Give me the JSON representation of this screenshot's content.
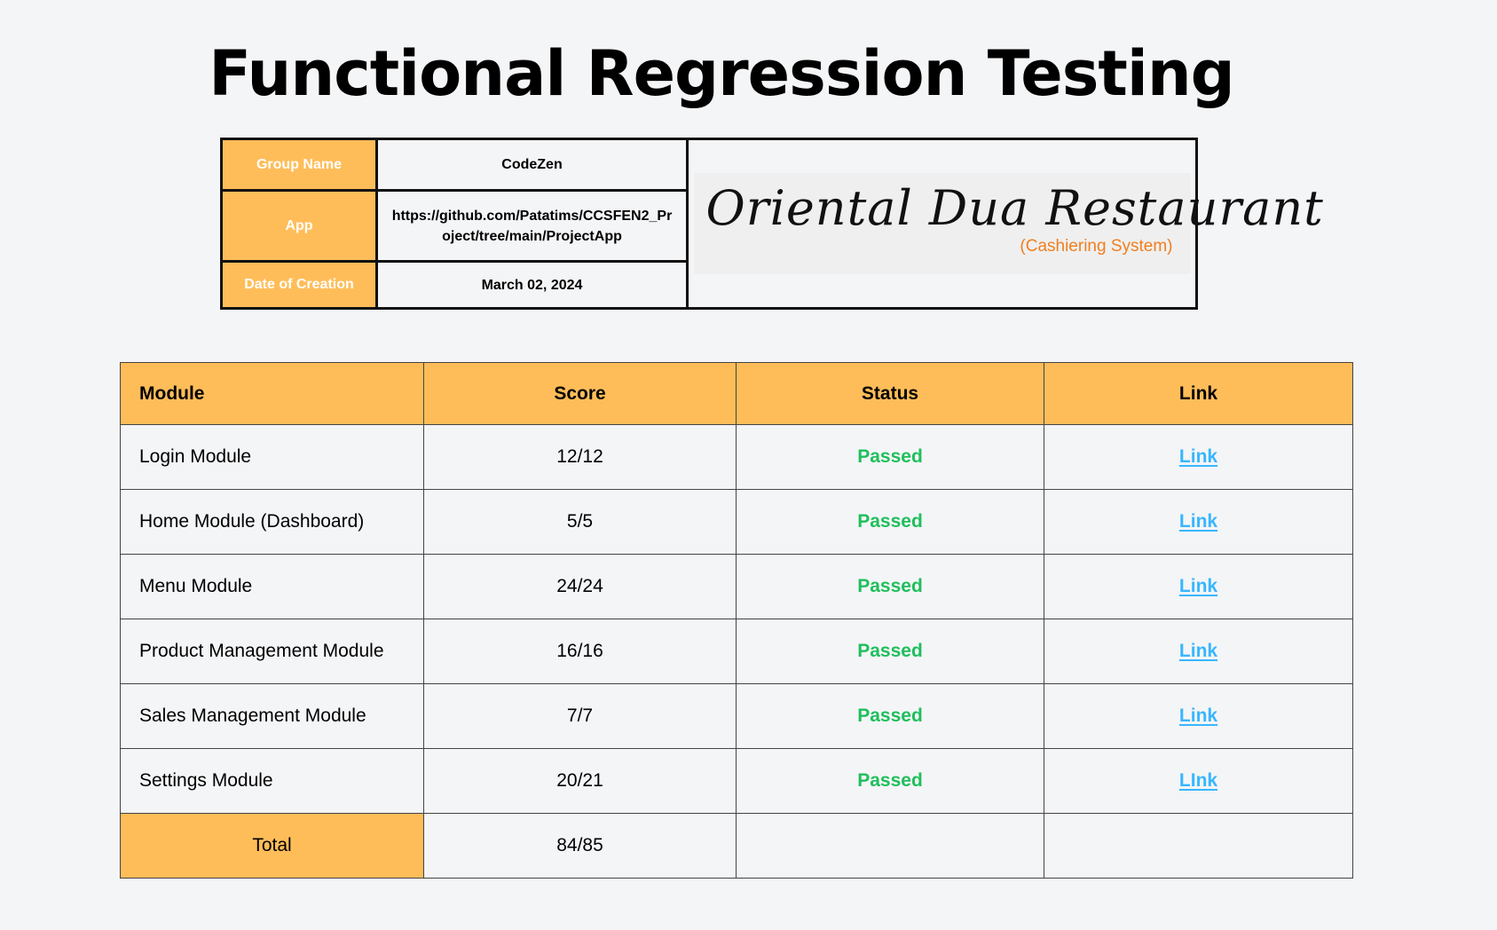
{
  "title": "Functional Regression Testing",
  "info": {
    "group_label": "Group Name",
    "group_value": "CodeZen",
    "app_label": "App",
    "app_value": "https://github.com/Patatims/CCSFEN2_Project/tree/main/ProjectApp",
    "date_label": "Date of Creation",
    "date_value": "March 02, 2024"
  },
  "logo": {
    "name": "Oriental Dua Restaurant",
    "subtitle": "(Cashiering System)",
    "subtitle_color": "#f07f1e"
  },
  "table": {
    "headers": {
      "module": "Module",
      "score": "Score",
      "status": "Status",
      "link": "Link"
    },
    "rows": [
      {
        "module": "Login Module",
        "score": "12/12",
        "status": "Passed",
        "link": "Link"
      },
      {
        "module": "Home Module (Dashboard)",
        "score": "5/5",
        "status": "Passed",
        "link": "Link"
      },
      {
        "module": "Menu Module",
        "score": "24/24",
        "status": "Passed",
        "link": "Link"
      },
      {
        "module": "Product Management Module",
        "score": "16/16",
        "status": "Passed",
        "link": "Link"
      },
      {
        "module": "Sales Management Module",
        "score": "7/7",
        "status": "Passed",
        "link": "Link"
      },
      {
        "module": "Settings Module",
        "score": "20/21",
        "status": "Passed",
        "link": "LInk"
      }
    ],
    "total_label": "Total",
    "total_score": "84/85"
  },
  "colors": {
    "header_bg": "#ffbd59",
    "passed": "#1fbf5c",
    "link": "#38b6ff",
    "background": "#f4f5f7"
  }
}
